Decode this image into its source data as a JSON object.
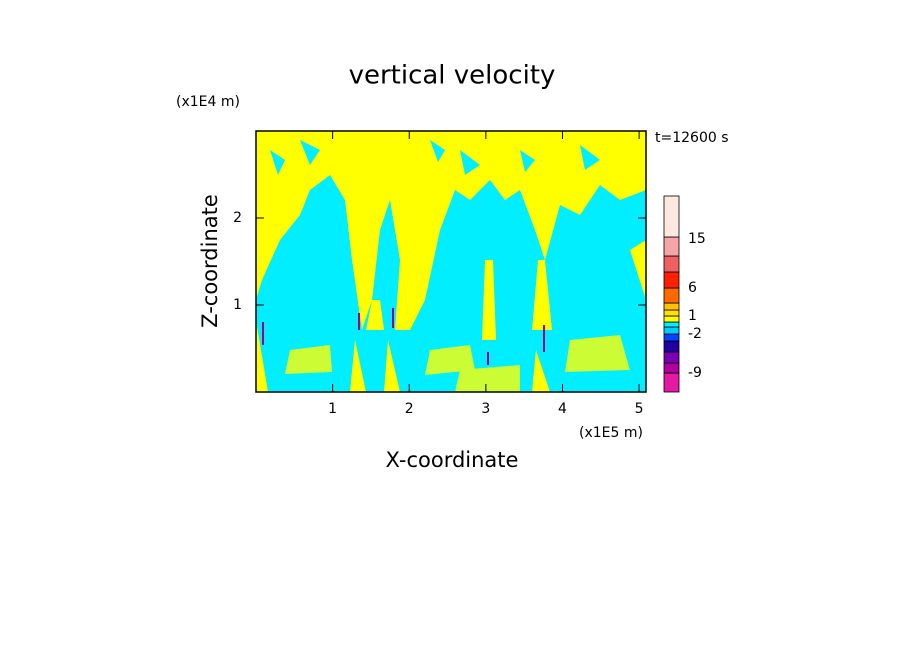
{
  "chart_data": {
    "type": "contour",
    "title": "vertical velocity",
    "y_unit": "(x1E4 m)",
    "x_unit": "(x1E5 m)",
    "time_label": "t=12600 s",
    "xlabel": "X-coordinate",
    "ylabel": "Z-coordinate",
    "xlim": [
      0,
      5.09
    ],
    "xticks": [
      1,
      2,
      3,
      4,
      5
    ],
    "ylim": [
      0,
      3
    ],
    "yticks": [
      1,
      2
    ],
    "colorbar": {
      "colors": [
        "#e619a3",
        "#b0009d",
        "#7a00b5",
        "#2000a0",
        "#0044ff",
        "#00ccff",
        "#00f0ff",
        "#ffff00",
        "#ffe000",
        "#ffc000",
        "#ff6a00",
        "#ff2000",
        "#f06060",
        "#f5a5a5",
        "#fde8e0"
      ],
      "labels": [
        -9,
        -2,
        1,
        6,
        15
      ]
    }
  }
}
